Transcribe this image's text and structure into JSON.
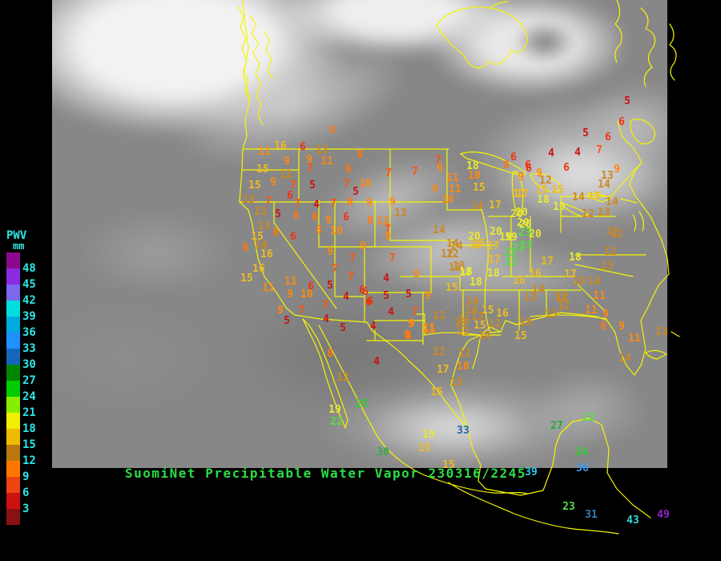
{
  "title": {
    "text": "SuomiNet Precipitable Water Vapor 230316/2245",
    "color": "#2ddd44"
  },
  "legend": {
    "title": "PWV",
    "unit": "mm",
    "label_color": "#2ee6e6",
    "labels": [
      "48",
      "45",
      "42",
      "39",
      "36",
      "33",
      "30",
      "27",
      "24",
      "21",
      "18",
      "15",
      "12",
      "9",
      "6",
      "3"
    ],
    "swatches": [
      "#8b0a8b",
      "#8a2be2",
      "#7b68ee",
      "#00dede",
      "#00aadd",
      "#1e90ff",
      "#1566bb",
      "#008800",
      "#00cc00",
      "#88ee00",
      "#f0f000",
      "#eebb00",
      "#bb7711",
      "#ff7700",
      "#ee4411",
      "#cc1111",
      "#881111"
    ]
  },
  "palette": [
    {
      "min": 48,
      "color": "#9922cc"
    },
    {
      "min": 45,
      "color": "#8a2be2"
    },
    {
      "min": 42,
      "color": "#33dddd"
    },
    {
      "min": 39,
      "color": "#33ccee"
    },
    {
      "min": 36,
      "color": "#3399ee"
    },
    {
      "min": 33,
      "color": "#2266bb"
    },
    {
      "min": 31,
      "color": "#2e7fbb"
    },
    {
      "min": 30,
      "color": "#33aa44"
    },
    {
      "min": 27,
      "color": "#22aa3c"
    },
    {
      "min": 24,
      "color": "#33cc33"
    },
    {
      "min": 21,
      "color": "#55dd44"
    },
    {
      "min": 18,
      "color": "#e8e832"
    },
    {
      "min": 15,
      "color": "#eebb22"
    },
    {
      "min": 12,
      "color": "#cc8822"
    },
    {
      "min": 9,
      "color": "#ff8811"
    },
    {
      "min": 8,
      "color": "#ff7711"
    },
    {
      "min": 7,
      "color": "#ff5511"
    },
    {
      "min": 6,
      "color": "#ee3311"
    },
    {
      "min": 3,
      "color": "#cc1111"
    }
  ],
  "map": {
    "border_color": "#f5f500",
    "background": "#000000"
  },
  "chart_data": {
    "type": "scatter",
    "title": "SuomiNet Precipitable Water Vapor 230316/2245",
    "units": "mm",
    "legend_range": [
      3,
      48
    ],
    "stations": [
      [
        415,
        163,
        8
      ],
      [
        350,
        183,
        16
      ],
      [
        378,
        184,
        6
      ],
      [
        402,
        188,
        12
      ],
      [
        330,
        190,
        11
      ],
      [
        449,
        194,
        8
      ],
      [
        358,
        202,
        9
      ],
      [
        386,
        200,
        9
      ],
      [
        408,
        202,
        11
      ],
      [
        328,
        212,
        15
      ],
      [
        387,
        211,
        7
      ],
      [
        435,
        212,
        8
      ],
      [
        357,
        219,
        12
      ],
      [
        341,
        228,
        9
      ],
      [
        433,
        230,
        7
      ],
      [
        456,
        230,
        10
      ],
      [
        318,
        232,
        15
      ],
      [
        366,
        232,
        7
      ],
      [
        390,
        232,
        5
      ],
      [
        444,
        240,
        5
      ],
      [
        362,
        245,
        6
      ],
      [
        310,
        250,
        13
      ],
      [
        335,
        252,
        7
      ],
      [
        371,
        255,
        7
      ],
      [
        395,
        256,
        4
      ],
      [
        416,
        255,
        7
      ],
      [
        437,
        253,
        8
      ],
      [
        461,
        254,
        9
      ],
      [
        325,
        265,
        13
      ],
      [
        347,
        268,
        5
      ],
      [
        370,
        270,
        8
      ],
      [
        393,
        272,
        8
      ],
      [
        410,
        276,
        9
      ],
      [
        432,
        272,
        6
      ],
      [
        462,
        276,
        8
      ],
      [
        330,
        283,
        13
      ],
      [
        344,
        291,
        8
      ],
      [
        321,
        296,
        15
      ],
      [
        366,
        296,
        6
      ],
      [
        398,
        288,
        8
      ],
      [
        420,
        289,
        10
      ],
      [
        306,
        310,
        8
      ],
      [
        326,
        307,
        14
      ],
      [
        333,
        318,
        16
      ],
      [
        412,
        315,
        9
      ],
      [
        453,
        308,
        9
      ],
      [
        440,
        323,
        7
      ],
      [
        323,
        336,
        16
      ],
      [
        418,
        336,
        7
      ],
      [
        308,
        348,
        15
      ],
      [
        438,
        346,
        7
      ],
      [
        363,
        352,
        11
      ],
      [
        335,
        360,
        11
      ],
      [
        388,
        358,
        6
      ],
      [
        412,
        357,
        5
      ],
      [
        362,
        368,
        9
      ],
      [
        383,
        368,
        10
      ],
      [
        432,
        371,
        4
      ],
      [
        456,
        365,
        6
      ],
      [
        460,
        378,
        6
      ],
      [
        406,
        382,
        7
      ],
      [
        350,
        388,
        9
      ],
      [
        376,
        388,
        7
      ],
      [
        358,
        401,
        5
      ],
      [
        407,
        399,
        4
      ],
      [
        428,
        410,
        5
      ],
      [
        466,
        408,
        4
      ],
      [
        485,
        217,
        7
      ],
      [
        518,
        215,
        7
      ],
      [
        547,
        201,
        7
      ],
      [
        549,
        211,
        9
      ],
      [
        590,
        208,
        18
      ],
      [
        641,
        197,
        6
      ],
      [
        632,
        207,
        8
      ],
      [
        660,
        211,
        6
      ],
      [
        565,
        223,
        11
      ],
      [
        592,
        220,
        10
      ],
      [
        650,
        222,
        9
      ],
      [
        543,
        237,
        9
      ],
      [
        568,
        237,
        11
      ],
      [
        598,
        235,
        15
      ],
      [
        652,
        243,
        17
      ],
      [
        490,
        253,
        9
      ],
      [
        559,
        250,
        10
      ],
      [
        596,
        258,
        14
      ],
      [
        618,
        257,
        17
      ],
      [
        500,
        267,
        13
      ],
      [
        651,
        266,
        20
      ],
      [
        478,
        277,
        11
      ],
      [
        484,
        287,
        7
      ],
      [
        656,
        281,
        20
      ],
      [
        548,
        288,
        14
      ],
      [
        484,
        296,
        9
      ],
      [
        592,
        296,
        20
      ],
      [
        619,
        290,
        20
      ],
      [
        638,
        297,
        19
      ],
      [
        565,
        305,
        14
      ],
      [
        593,
        307,
        15
      ],
      [
        616,
        308,
        17
      ],
      [
        490,
        323,
        7
      ],
      [
        558,
        318,
        12
      ],
      [
        482,
        348,
        4
      ],
      [
        520,
        343,
        9
      ],
      [
        568,
        335,
        13
      ],
      [
        582,
        340,
        18
      ],
      [
        452,
        363,
        6
      ],
      [
        482,
        370,
        5
      ],
      [
        510,
        368,
        5
      ],
      [
        534,
        370,
        9
      ],
      [
        462,
        377,
        6
      ],
      [
        488,
        390,
        4
      ],
      [
        518,
        390,
        7
      ],
      [
        548,
        395,
        12
      ],
      [
        514,
        405,
        9
      ],
      [
        536,
        410,
        11
      ],
      [
        510,
        420,
        8
      ],
      [
        783,
        127,
        5
      ],
      [
        776,
        153,
        6
      ],
      [
        731,
        167,
        5
      ],
      [
        759,
        172,
        6
      ],
      [
        688,
        192,
        4
      ],
      [
        721,
        191,
        4
      ],
      [
        748,
        188,
        7
      ],
      [
        659,
        207,
        6
      ],
      [
        707,
        210,
        6
      ],
      [
        673,
        217,
        9
      ],
      [
        770,
        212,
        9
      ],
      [
        681,
        226,
        12
      ],
      [
        758,
        220,
        13
      ],
      [
        754,
        231,
        14
      ],
      [
        648,
        243,
        17
      ],
      [
        676,
        238,
        15
      ],
      [
        696,
        238,
        15
      ],
      [
        678,
        250,
        18
      ],
      [
        722,
        247,
        14
      ],
      [
        742,
        246,
        15
      ],
      [
        698,
        259,
        19
      ],
      [
        764,
        253,
        14
      ],
      [
        734,
        268,
        12
      ],
      [
        754,
        266,
        13
      ],
      [
        645,
        268,
        20
      ],
      [
        653,
        279,
        20
      ],
      [
        764,
        290,
        12
      ],
      [
        655,
        291,
        23
      ],
      [
        631,
        297,
        19
      ],
      [
        668,
        293,
        20
      ],
      [
        647,
        310,
        22
      ],
      [
        657,
        307,
        23
      ],
      [
        637,
        316,
        22
      ],
      [
        638,
        328,
        22
      ],
      [
        617,
        325,
        17
      ],
      [
        570,
        308,
        14
      ],
      [
        598,
        305,
        15
      ],
      [
        565,
        318,
        12
      ],
      [
        573,
        333,
        13
      ],
      [
        683,
        327,
        17
      ],
      [
        718,
        322,
        18
      ],
      [
        581,
        341,
        18
      ],
      [
        616,
        342,
        18
      ],
      [
        668,
        342,
        16
      ],
      [
        712,
        343,
        17
      ],
      [
        594,
        353,
        18
      ],
      [
        648,
        351,
        16
      ],
      [
        723,
        352,
        14
      ],
      [
        564,
        360,
        15
      ],
      [
        672,
        362,
        14
      ],
      [
        662,
        372,
        13
      ],
      [
        700,
        371,
        12
      ],
      [
        590,
        377,
        14
      ],
      [
        588,
        388,
        14
      ],
      [
        704,
        383,
        12
      ],
      [
        609,
        388,
        15
      ],
      [
        627,
        392,
        16
      ],
      [
        596,
        396,
        13
      ],
      [
        579,
        400,
        13
      ],
      [
        599,
        407,
        15
      ],
      [
        618,
        405,
        12
      ],
      [
        656,
        403,
        13
      ],
      [
        688,
        393,
        13
      ],
      [
        578,
        415,
        13
      ],
      [
        605,
        420,
        14
      ],
      [
        650,
        420,
        15
      ],
      [
        770,
        293,
        12
      ],
      [
        762,
        315,
        12
      ],
      [
        758,
        333,
        13
      ],
      [
        742,
        352,
        14
      ],
      [
        748,
        370,
        11
      ],
      [
        702,
        373,
        12
      ],
      [
        738,
        388,
        11
      ],
      [
        756,
        393,
        9
      ],
      [
        753,
        408,
        8
      ],
      [
        776,
        408,
        9
      ],
      [
        792,
        423,
        11
      ],
      [
        826,
        415,
        13
      ],
      [
        780,
        448,
        14
      ],
      [
        513,
        405,
        9
      ],
      [
        508,
        419,
        8
      ],
      [
        535,
        412,
        11
      ],
      [
        575,
        404,
        13
      ],
      [
        548,
        440,
        12
      ],
      [
        580,
        442,
        12
      ],
      [
        553,
        462,
        17
      ],
      [
        578,
        458,
        10
      ],
      [
        570,
        478,
        13
      ],
      [
        545,
        490,
        15
      ],
      [
        412,
        442,
        8
      ],
      [
        470,
        452,
        4
      ],
      [
        428,
        472,
        12
      ],
      [
        418,
        512,
        19
      ],
      [
        452,
        505,
        25
      ],
      [
        420,
        527,
        22
      ],
      [
        535,
        543,
        19
      ],
      [
        578,
        538,
        33
      ],
      [
        530,
        560,
        15
      ],
      [
        478,
        565,
        30
      ],
      [
        560,
        581,
        15
      ],
      [
        663,
        590,
        39
      ],
      [
        695,
        532,
        27
      ],
      [
        735,
        522,
        22
      ],
      [
        726,
        565,
        24
      ],
      [
        727,
        585,
        36
      ],
      [
        710,
        633,
        23
      ],
      [
        738,
        643,
        31
      ],
      [
        790,
        650,
        43
      ],
      [
        828,
        643,
        49
      ]
    ]
  }
}
